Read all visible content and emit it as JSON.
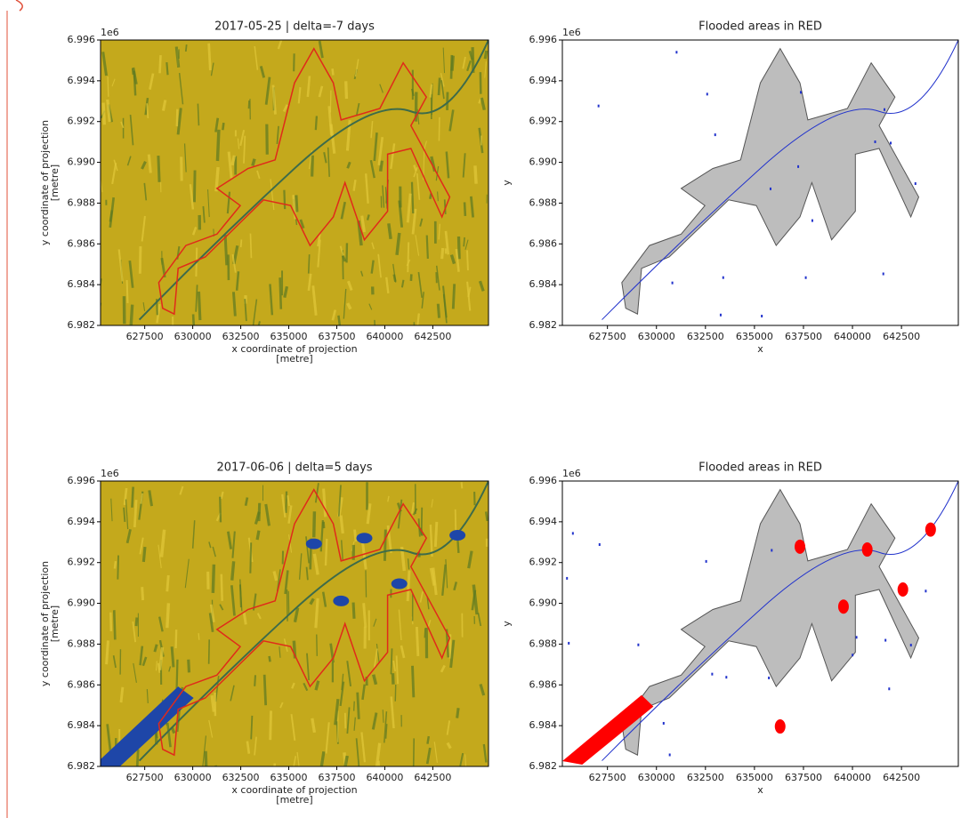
{
  "chart_data": [
    {
      "type": "image",
      "title": "2017-05-25 | delta=-7 days",
      "xlabel": [
        "x coordinate of projection",
        "[metre]"
      ],
      "ylabel": [
        "y coordinate of projection",
        "[metre]"
      ],
      "offset_text": "1e6",
      "xlim": [
        625200,
        645400
      ],
      "ylim": [
        6982000,
        6996000
      ],
      "xticks": [
        627500,
        630000,
        632500,
        635000,
        637500,
        640000,
        642500
      ],
      "yticks": [
        {
          "value": 6982000,
          "label": "6.982"
        },
        {
          "value": 6984000,
          "label": "6.984"
        },
        {
          "value": 6986000,
          "label": "6.986"
        },
        {
          "value": 6988000,
          "label": "6.988"
        },
        {
          "value": 6990000,
          "label": "6.990"
        },
        {
          "value": 6992000,
          "label": "6.992"
        },
        {
          "value": 6994000,
          "label": "6.994"
        },
        {
          "value": 6996000,
          "label": "6.996"
        }
      ]
    },
    {
      "type": "flood-map",
      "title": "Flooded areas in RED",
      "xlabel": [
        "x"
      ],
      "ylabel": [
        "y"
      ],
      "offset_text": "1e6",
      "xlim": [
        625200,
        645400
      ],
      "ylim": [
        6982000,
        6996000
      ],
      "xticks": [
        627500,
        630000,
        632500,
        635000,
        637500,
        640000,
        642500
      ],
      "yticks": [
        {
          "value": 6982000,
          "label": "6.982"
        },
        {
          "value": 6984000,
          "label": "6.984"
        },
        {
          "value": 6986000,
          "label": "6.986"
        },
        {
          "value": 6988000,
          "label": "6.988"
        },
        {
          "value": 6990000,
          "label": "6.990"
        },
        {
          "value": 6992000,
          "label": "6.992"
        },
        {
          "value": 6994000,
          "label": "6.994"
        },
        {
          "value": 6996000,
          "label": "6.996"
        }
      ]
    },
    {
      "type": "image",
      "title": "2017-06-06 | delta=5 days",
      "xlabel": [
        "x coordinate of projection",
        "[metre]"
      ],
      "ylabel": [
        "y coordinate of projection",
        "[metre]"
      ],
      "offset_text": "1e6",
      "xlim": [
        625200,
        645400
      ],
      "ylim": [
        6982000,
        6996000
      ],
      "xticks": [
        627500,
        630000,
        632500,
        635000,
        637500,
        640000,
        642500
      ],
      "yticks": [
        {
          "value": 6982000,
          "label": "6.982"
        },
        {
          "value": 6984000,
          "label": "6.984"
        },
        {
          "value": 6986000,
          "label": "6.986"
        },
        {
          "value": 6988000,
          "label": "6.988"
        },
        {
          "value": 6990000,
          "label": "6.990"
        },
        {
          "value": 6992000,
          "label": "6.992"
        },
        {
          "value": 6994000,
          "label": "6.994"
        },
        {
          "value": 6996000,
          "label": "6.996"
        }
      ]
    },
    {
      "type": "flood-map",
      "title": "Flooded areas in RED",
      "xlabel": [
        "x"
      ],
      "ylabel": [
        "y"
      ],
      "offset_text": "1e6",
      "xlim": [
        625200,
        645400
      ],
      "ylim": [
        6982000,
        6996000
      ],
      "xticks": [
        627500,
        630000,
        632500,
        635000,
        637500,
        640000,
        642500
      ],
      "yticks": [
        {
          "value": 6982000,
          "label": "6.982"
        },
        {
          "value": 6984000,
          "label": "6.984"
        },
        {
          "value": 6986000,
          "label": "6.986"
        },
        {
          "value": 6988000,
          "label": "6.988"
        },
        {
          "value": 6990000,
          "label": "6.990"
        },
        {
          "value": 6992000,
          "label": "6.992"
        },
        {
          "value": 6994000,
          "label": "6.994"
        },
        {
          "value": 6996000,
          "label": "6.996"
        }
      ]
    }
  ]
}
